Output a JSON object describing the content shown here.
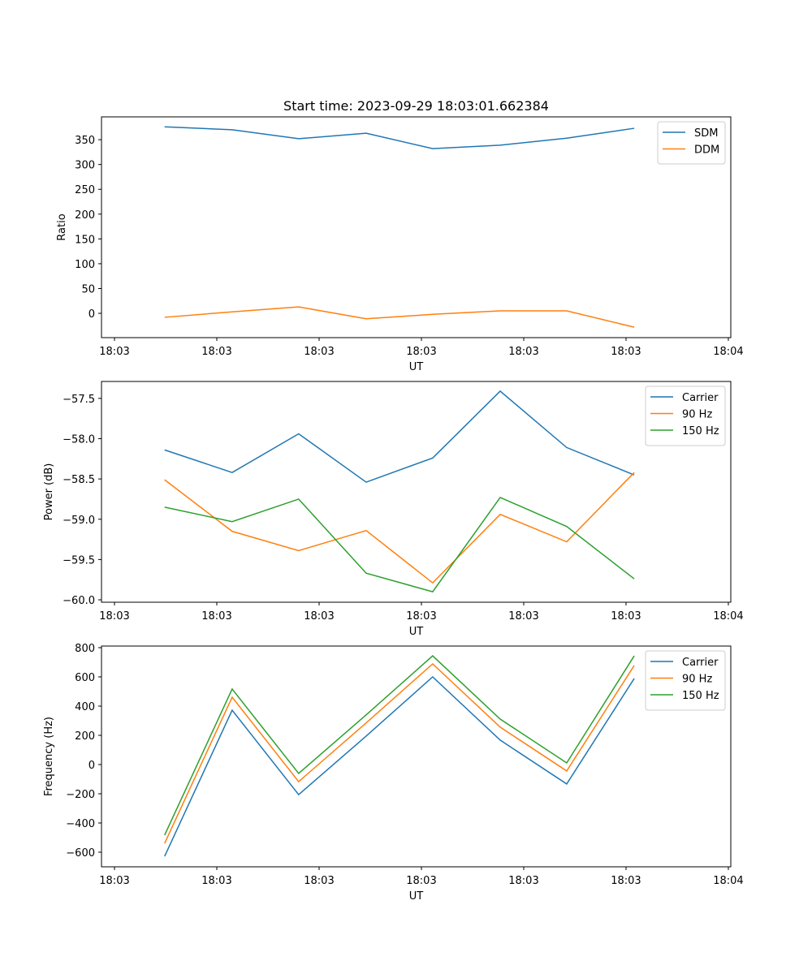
{
  "chart_data": [
    {
      "type": "line",
      "title": "Start time: 2023-09-29 18:03:01.662384",
      "xlabel": "UT",
      "ylabel": "Ratio",
      "x_unit": "seconds after 18:03:00",
      "x": [
        4.9,
        11.5,
        18.0,
        24.6,
        31.1,
        37.7,
        44.2,
        50.8
      ],
      "xlim": [
        -1.27,
        60.24
      ],
      "xticks": [
        0,
        10,
        20,
        30,
        40,
        50,
        60
      ],
      "xticklabels": [
        "18:03",
        "18:03",
        "18:03",
        "18:03",
        "18:03",
        "18:03",
        "18:04"
      ],
      "ylim": [
        -49,
        396
      ],
      "yticks": [
        0,
        50,
        100,
        150,
        200,
        250,
        300,
        350
      ],
      "yticklabels": [
        "0",
        "50",
        "100",
        "150",
        "200",
        "250",
        "300",
        "350"
      ],
      "legend_position": "top-right",
      "series": [
        {
          "name": "SDM",
          "color": "#1f77b4",
          "values": [
            376,
            370,
            352,
            363,
            332,
            339,
            353,
            373
          ]
        },
        {
          "name": "DDM",
          "color": "#ff7f0e",
          "values": [
            -8,
            3,
            13,
            -11,
            -2,
            5,
            5,
            -28
          ]
        }
      ]
    },
    {
      "type": "line",
      "title": "",
      "xlabel": "UT",
      "ylabel": "Power (dB)",
      "x_unit": "seconds after 18:03:00",
      "x": [
        4.9,
        11.5,
        18.0,
        24.6,
        31.1,
        37.7,
        44.2,
        50.8
      ],
      "xlim": [
        -1.27,
        60.24
      ],
      "xticks": [
        0,
        10,
        20,
        30,
        40,
        50,
        60
      ],
      "xticklabels": [
        "18:03",
        "18:03",
        "18:03",
        "18:03",
        "18:03",
        "18:03",
        "18:04"
      ],
      "ylim": [
        -60.03,
        -57.29
      ],
      "yticks": [
        -60,
        -59.5,
        -59,
        -58.5,
        -58,
        -57.5
      ],
      "yticklabels": [
        "−60.0",
        "−59.5",
        "−59.0",
        "−58.5",
        "−58.0",
        "−57.5"
      ],
      "legend_position": "top-right",
      "series": [
        {
          "name": "Carrier",
          "color": "#1f77b4",
          "values": [
            -58.14,
            -58.42,
            -57.94,
            -58.54,
            -58.24,
            -57.41,
            -58.11,
            -58.45
          ]
        },
        {
          "name": "90 Hz",
          "color": "#ff7f0e",
          "values": [
            -58.51,
            -59.15,
            -59.39,
            -59.14,
            -59.79,
            -58.94,
            -59.28,
            -58.42
          ]
        },
        {
          "name": "150 Hz",
          "color": "#2ca02c",
          "values": [
            -58.85,
            -59.03,
            -58.75,
            -59.67,
            -59.9,
            -58.73,
            -59.09,
            -59.74
          ]
        }
      ]
    },
    {
      "type": "line",
      "title": "",
      "xlabel": "UT",
      "ylabel": "Frequency (Hz)",
      "x_unit": "seconds after 18:03:00",
      "x": [
        4.9,
        11.5,
        18.0,
        24.6,
        31.1,
        37.7,
        44.2,
        50.8
      ],
      "xlim": [
        -1.27,
        60.24
      ],
      "xticks": [
        0,
        10,
        20,
        30,
        40,
        50,
        60
      ],
      "xticklabels": [
        "18:03",
        "18:03",
        "18:03",
        "18:03",
        "18:03",
        "18:03",
        "18:04"
      ],
      "ylim": [
        -700,
        811
      ],
      "yticks": [
        -600,
        -400,
        -200,
        0,
        200,
        400,
        600,
        800
      ],
      "yticklabels": [
        "−600",
        "−400",
        "−200",
        "0",
        "200",
        "400",
        "600",
        "800"
      ],
      "legend_position": "top-right",
      "series": [
        {
          "name": "Carrier",
          "color": "#1f77b4",
          "values": [
            -628,
            372,
            -206,
            195,
            600,
            167,
            -133,
            589
          ]
        },
        {
          "name": "90 Hz",
          "color": "#ff7f0e",
          "values": [
            -539,
            461,
            -117,
            285,
            689,
            256,
            -44,
            678
          ]
        },
        {
          "name": "150 Hz",
          "color": "#2ca02c",
          "values": [
            -483,
            517,
            -61,
            340,
            744,
            311,
            11,
            744
          ]
        }
      ]
    }
  ]
}
